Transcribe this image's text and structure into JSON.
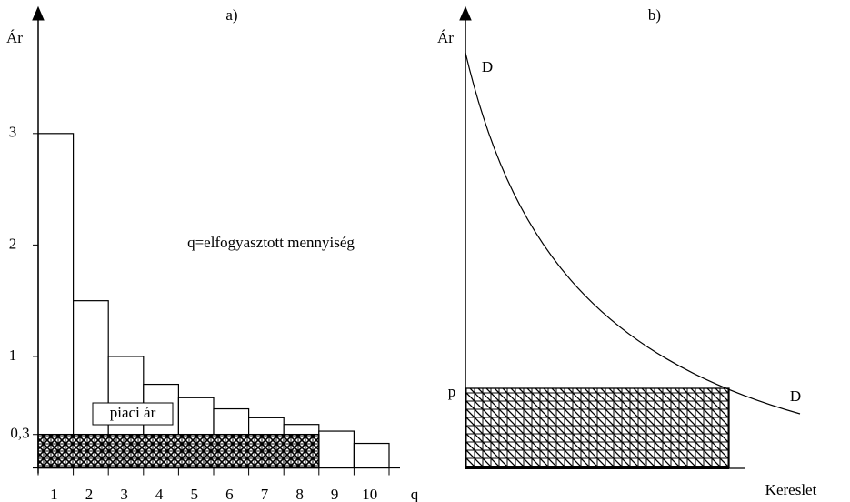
{
  "chart_data": [
    {
      "type": "bar",
      "title": "a)",
      "y_label": "Ár",
      "x_label": "q",
      "annotation": "q=elfogyasztott mennyiség",
      "price_label": "piaci ár",
      "market_price": 0.3,
      "categories": [
        "1",
        "2",
        "3",
        "4",
        "5",
        "6",
        "7",
        "8",
        "9",
        "10"
      ],
      "values": [
        3,
        1.5,
        1,
        0.75,
        0.63,
        0.53,
        0.45,
        0.39,
        0.33,
        0.22
      ],
      "color": "#ffffff",
      "ylim": [
        0,
        4.1
      ],
      "yticks": [
        {
          "value": 0.3,
          "label": "0,3"
        },
        1,
        2,
        3
      ]
    },
    {
      "type": "diagram",
      "title": "b)",
      "y_label": "Ár",
      "x_label": "Kereslet",
      "curve_label": "D",
      "price_label": "p"
    }
  ]
}
